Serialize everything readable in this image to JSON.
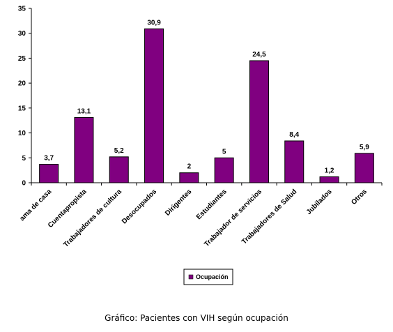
{
  "caption": "Gráfico: Pacientes con VIH según ocupación",
  "chart_data": {
    "type": "bar",
    "categories": [
      "ama de casa",
      "Cuentapropista",
      "Trabajadores de cultura",
      "Desocupados",
      "Dirigentes",
      "Estudiantes",
      "Trabajador de servicios",
      "Trabajadores de Salud",
      "Jubilados",
      "Otros"
    ],
    "series": [
      {
        "name": "Ocupación",
        "values": [
          3.7,
          13.1,
          5.2,
          30.9,
          2,
          5,
          24.5,
          8.4,
          1.2,
          5.9
        ],
        "value_labels": [
          "3,7",
          "13,1",
          "5,2",
          "30,9",
          "2",
          "5",
          "24,5",
          "8,4",
          "1,2",
          "5,9"
        ]
      }
    ],
    "ylim": [
      0,
      35
    ],
    "yticks": [
      0,
      5,
      10,
      15,
      20,
      25,
      30,
      35
    ],
    "grid": false,
    "legend": "bottom",
    "bar_color": "#800080"
  }
}
